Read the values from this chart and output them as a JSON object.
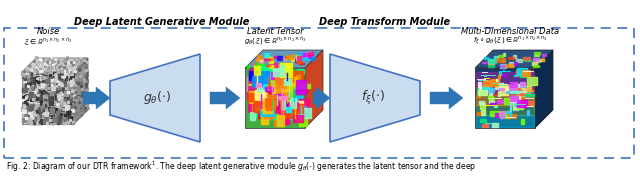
{
  "fig_width": 6.4,
  "fig_height": 1.8,
  "dpi": 100,
  "background_color": "#ffffff",
  "border_color": "#4472C4",
  "box_color": "#C9DCF0",
  "box_edge_color": "#4472C4",
  "arrow_color": "#2E75B6",
  "noise_cube_front": "#b8b8b8",
  "noise_cube_top": "#d8d8d8",
  "noise_cube_right": "#909090",
  "caption": "Fig. 2: Diagram of our DTR framework$^1$. The deep latent generative module $g_{\\theta}(\\cdot)$ generates the latent tensor and the deep"
}
